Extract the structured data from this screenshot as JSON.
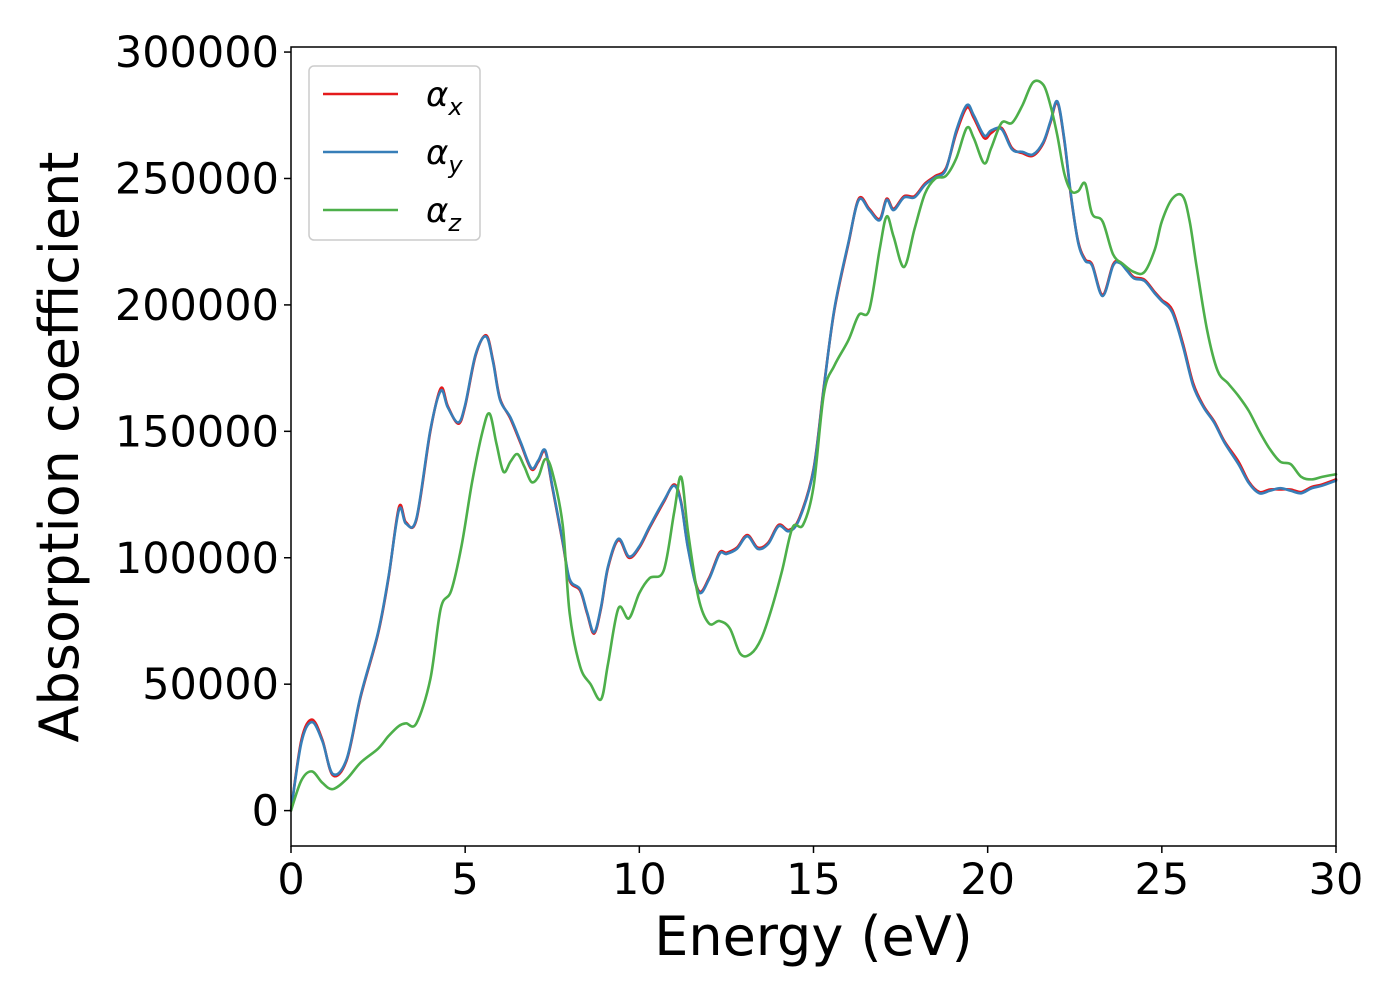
{
  "chart_data": {
    "type": "line",
    "title": "",
    "xlabel": "Energy (eV)",
    "ylabel": "Absorption coefficient",
    "xlim": [
      0,
      30
    ],
    "ylim": [
      -14000,
      302000
    ],
    "xticks": [
      0,
      5,
      10,
      15,
      20,
      25,
      30
    ],
    "yticks": [
      0,
      50000,
      100000,
      150000,
      200000,
      250000,
      300000
    ],
    "grid": false,
    "legend_position": "top-left",
    "series": [
      {
        "name": "α_x",
        "legend_base": "α",
        "legend_sub": "x",
        "color": "#e41a1c",
        "x": [
          0,
          0.3,
          0.6,
          0.9,
          1.2,
          1.6,
          2.0,
          2.5,
          2.8,
          3.1,
          3.3,
          3.6,
          4.0,
          4.3,
          4.5,
          4.8,
          5.0,
          5.3,
          5.6,
          5.8,
          6.0,
          6.3,
          6.6,
          6.9,
          7.1,
          7.3,
          7.5,
          7.8,
          8.0,
          8.3,
          8.5,
          8.7,
          8.9,
          9.1,
          9.4,
          9.7,
          10.0,
          10.3,
          10.7,
          11.0,
          11.2,
          11.4,
          11.7,
          12.0,
          12.3,
          12.5,
          12.8,
          13.1,
          13.4,
          13.7,
          14.0,
          14.3,
          14.6,
          15.0,
          15.3,
          15.6,
          16.0,
          16.3,
          16.6,
          16.9,
          17.1,
          17.3,
          17.6,
          17.9,
          18.2,
          18.5,
          18.8,
          19.1,
          19.4,
          19.6,
          19.9,
          20.1,
          20.4,
          20.7,
          21.0,
          21.3,
          21.6,
          21.8,
          22.0,
          22.2,
          22.4,
          22.6,
          22.8,
          23.0,
          23.3,
          23.6,
          23.8,
          24.0,
          24.2,
          24.5,
          24.8,
          25.0,
          25.3,
          25.6,
          25.9,
          26.2,
          26.5,
          26.8,
          27.2,
          27.5,
          27.8,
          28.1,
          28.4,
          28.7,
          29.0,
          29.3,
          29.6,
          30.0
        ],
        "y": [
          0,
          28000,
          36000,
          28000,
          14000,
          20000,
          45000,
          70000,
          92000,
          120000,
          114000,
          115000,
          150000,
          167000,
          160000,
          153000,
          160000,
          180000,
          188000,
          178000,
          163000,
          155000,
          145000,
          135000,
          138000,
          142000,
          128000,
          106000,
          91000,
          87000,
          78000,
          70000,
          80000,
          96000,
          107000,
          100000,
          104000,
          112000,
          122000,
          129000,
          122000,
          104000,
          87000,
          92000,
          102000,
          102000,
          104000,
          109000,
          104000,
          106000,
          113000,
          111000,
          116000,
          135000,
          168000,
          198000,
          224000,
          242000,
          238000,
          234000,
          242000,
          238000,
          243000,
          243000,
          248000,
          251000,
          254000,
          268000,
          278000,
          274000,
          266000,
          268000,
          270000,
          262000,
          260000,
          259000,
          264000,
          272000,
          280000,
          265000,
          242000,
          225000,
          218000,
          216000,
          204000,
          216000,
          217000,
          214000,
          211000,
          210000,
          205000,
          202000,
          198000,
          185000,
          169000,
          160000,
          154000,
          146000,
          138000,
          130000,
          126000,
          127000,
          127000,
          127000,
          126000,
          128000,
          129000,
          131000
        ]
      },
      {
        "name": "α_y",
        "legend_base": "α",
        "legend_sub": "y",
        "color": "#377eb8",
        "x": [
          0,
          0.3,
          0.6,
          0.9,
          1.2,
          1.6,
          2.0,
          2.5,
          2.8,
          3.1,
          3.3,
          3.6,
          4.0,
          4.3,
          4.5,
          4.8,
          5.0,
          5.3,
          5.6,
          5.8,
          6.0,
          6.3,
          6.6,
          6.9,
          7.1,
          7.3,
          7.5,
          7.8,
          8.0,
          8.3,
          8.5,
          8.7,
          8.9,
          9.1,
          9.4,
          9.7,
          10.0,
          10.3,
          10.7,
          11.0,
          11.2,
          11.4,
          11.7,
          12.0,
          12.3,
          12.5,
          12.8,
          13.1,
          13.4,
          13.7,
          14.0,
          14.3,
          14.6,
          15.0,
          15.3,
          15.6,
          16.0,
          16.3,
          16.6,
          16.9,
          17.1,
          17.3,
          17.6,
          17.9,
          18.2,
          18.5,
          18.8,
          19.1,
          19.4,
          19.6,
          19.9,
          20.1,
          20.4,
          20.7,
          21.0,
          21.3,
          21.6,
          21.8,
          22.0,
          22.2,
          22.4,
          22.6,
          22.8,
          23.0,
          23.3,
          23.6,
          23.8,
          24.0,
          24.2,
          24.5,
          24.8,
          25.0,
          25.3,
          25.6,
          25.9,
          26.2,
          26.5,
          26.8,
          27.2,
          27.5,
          27.8,
          28.1,
          28.4,
          28.7,
          29.0,
          29.3,
          29.6,
          30.0
        ],
        "y": [
          0,
          27000,
          35000,
          27500,
          14500,
          20500,
          45500,
          70500,
          92500,
          119000,
          113500,
          115500,
          150500,
          166000,
          159500,
          153500,
          160500,
          180500,
          187500,
          177500,
          162500,
          155500,
          145500,
          135500,
          138500,
          142500,
          128500,
          106500,
          91500,
          87500,
          78500,
          70500,
          80500,
          96500,
          107500,
          100500,
          104500,
          112500,
          122500,
          128500,
          121500,
          103500,
          86500,
          91500,
          101500,
          101500,
          103500,
          108500,
          103500,
          105500,
          112500,
          110500,
          115500,
          134500,
          167500,
          198500,
          224500,
          241500,
          237500,
          233500,
          241500,
          237500,
          242500,
          242500,
          247500,
          250500,
          253500,
          269000,
          279000,
          275000,
          267000,
          269000,
          269500,
          261500,
          260500,
          259500,
          264500,
          272500,
          280500,
          265500,
          242500,
          224500,
          217500,
          215500,
          203500,
          215500,
          216500,
          213500,
          210500,
          209500,
          204500,
          201500,
          197000,
          184000,
          168000,
          159500,
          153500,
          145500,
          137000,
          129500,
          125500,
          126500,
          127500,
          126500,
          125500,
          127500,
          128500,
          130500
        ]
      },
      {
        "name": "α_z",
        "legend_base": "α",
        "legend_sub": "z",
        "color": "#4daf4a",
        "x": [
          0,
          0.3,
          0.6,
          0.9,
          1.2,
          1.6,
          2.0,
          2.5,
          2.8,
          3.1,
          3.3,
          3.6,
          4.0,
          4.3,
          4.6,
          4.9,
          5.2,
          5.5,
          5.7,
          5.9,
          6.1,
          6.3,
          6.5,
          6.7,
          6.9,
          7.1,
          7.3,
          7.5,
          7.8,
          8.0,
          8.3,
          8.6,
          8.9,
          9.1,
          9.4,
          9.7,
          10.0,
          10.3,
          10.7,
          11.0,
          11.2,
          11.4,
          11.7,
          12.0,
          12.3,
          12.6,
          12.9,
          13.2,
          13.5,
          13.8,
          14.1,
          14.4,
          14.7,
          15.0,
          15.3,
          15.6,
          16.0,
          16.3,
          16.6,
          16.9,
          17.1,
          17.3,
          17.6,
          17.9,
          18.2,
          18.5,
          18.8,
          19.1,
          19.4,
          19.6,
          19.9,
          20.1,
          20.4,
          20.7,
          21.0,
          21.3,
          21.6,
          21.8,
          22.0,
          22.2,
          22.4,
          22.6,
          22.8,
          23.0,
          23.3,
          23.6,
          23.9,
          24.2,
          24.5,
          24.8,
          25.0,
          25.3,
          25.6,
          25.8,
          26.0,
          26.3,
          26.6,
          26.9,
          27.2,
          27.5,
          27.8,
          28.1,
          28.4,
          28.7,
          29.0,
          29.3,
          29.6,
          30.0
        ],
        "y": [
          0,
          12000,
          15500,
          11000,
          8500,
          12500,
          19000,
          24500,
          29500,
          33500,
          34500,
          34500,
          52000,
          80000,
          87000,
          105000,
          130000,
          150000,
          157000,
          145000,
          134000,
          138000,
          141000,
          136000,
          130000,
          132000,
          139000,
          134000,
          113000,
          78000,
          57000,
          50000,
          44000,
          58000,
          80000,
          76000,
          86000,
          92000,
          95000,
          118000,
          132000,
          110000,
          84000,
          74000,
          75000,
          72000,
          62000,
          62000,
          68000,
          80000,
          95000,
          112000,
          113000,
          128000,
          165000,
          176000,
          186000,
          196000,
          198000,
          222000,
          235000,
          227000,
          215000,
          230000,
          244000,
          250000,
          251000,
          258000,
          270000,
          266000,
          256000,
          262000,
          272000,
          272000,
          279000,
          288000,
          287000,
          279000,
          267000,
          252000,
          245000,
          245000,
          248000,
          236000,
          233000,
          220000,
          216000,
          213000,
          213000,
          222000,
          233000,
          242000,
          243000,
          233000,
          215000,
          190000,
          174000,
          169000,
          164000,
          158000,
          150000,
          143000,
          138000,
          137000,
          132000,
          131000,
          132000,
          133000
        ]
      }
    ]
  }
}
